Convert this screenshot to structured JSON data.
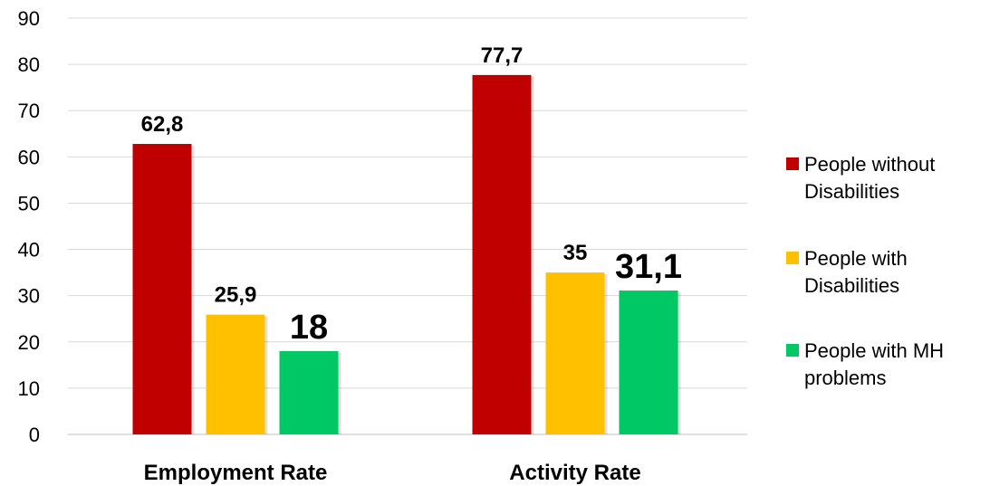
{
  "chart_data": {
    "type": "bar",
    "title": "",
    "xlabel": "",
    "ylabel": "",
    "categories": [
      "Employment Rate",
      "Activity Rate"
    ],
    "series": [
      {
        "name": "People without Disabilities",
        "values": [
          62.8,
          77.7
        ],
        "labels": [
          "62,8",
          "77,7"
        ],
        "color": "#C00000"
      },
      {
        "name": "People with Disabilities",
        "values": [
          25.9,
          35
        ],
        "labels": [
          "25,9",
          "35"
        ],
        "color": "#FFC000"
      },
      {
        "name": "People with MH problems",
        "values": [
          18,
          31.1
        ],
        "labels": [
          "18",
          "31,1"
        ],
        "color": "#00C864"
      }
    ],
    "ylim": [
      0,
      90
    ],
    "yticks": [
      0,
      10,
      20,
      30,
      40,
      50,
      60,
      70,
      80,
      90
    ],
    "grid": true,
    "legend_position": "right",
    "emphasized_series": "People with MH problems"
  }
}
